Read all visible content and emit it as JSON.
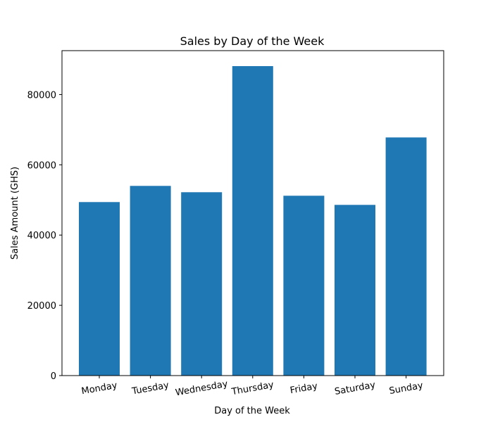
{
  "chart_data": {
    "type": "bar",
    "title": "Sales by Day of the Week",
    "xlabel": "Day of the Week",
    "ylabel": "Sales Amount (GHS)",
    "categories": [
      "Monday",
      "Tuesday",
      "Wednesday",
      "Thursday",
      "Friday",
      "Saturday",
      "Sunday"
    ],
    "values": [
      49400,
      54000,
      52200,
      88100,
      51200,
      48600,
      67800
    ],
    "ylim": [
      0,
      92500
    ],
    "yticks": [
      0,
      20000,
      40000,
      60000,
      80000
    ],
    "ytick_labels": [
      "0",
      "20000",
      "40000",
      "60000",
      "80000"
    ],
    "bar_color": "#1f77b4",
    "grid": false,
    "legend": "none"
  }
}
